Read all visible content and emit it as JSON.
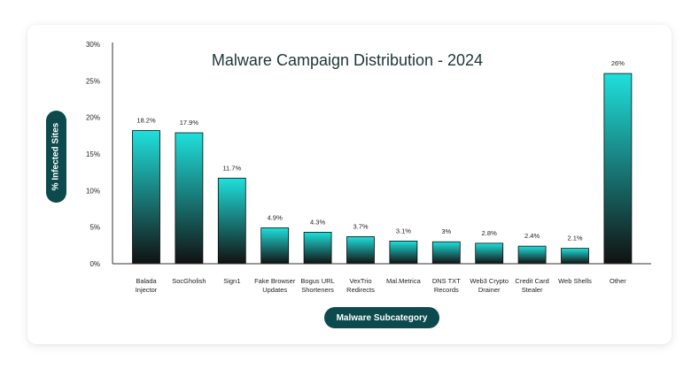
{
  "chart_data": {
    "type": "bar",
    "title": "Malware Campaign Distribution - 2024",
    "xlabel": "Malware Subcategory",
    "ylabel": "% Infected Sites",
    "ylim": [
      0,
      30
    ],
    "yticks": [
      "0%",
      "5%",
      "10%",
      "15%",
      "20%",
      "25%",
      "30%"
    ],
    "categories": [
      [
        "Balada",
        "Injector"
      ],
      [
        "SocGholish"
      ],
      [
        "Sign1"
      ],
      [
        "Fake Browser",
        "Updates"
      ],
      [
        "Bogus URL",
        "Shorteners"
      ],
      [
        "VexTrio",
        "Redirects"
      ],
      [
        "Mal.Metrica"
      ],
      [
        "DNS TXT",
        "Records"
      ],
      [
        "Web3 Crypto",
        "Drainer"
      ],
      [
        "Credit Card",
        "Stealer"
      ],
      [
        "Web Shells"
      ],
      [
        "Other"
      ]
    ],
    "values": [
      18.2,
      17.9,
      11.7,
      4.9,
      4.3,
      3.7,
      3.1,
      3,
      2.8,
      2.4,
      2.1,
      26
    ],
    "value_labels": [
      "18.2%",
      "17.9%",
      "11.7%",
      "4.9%",
      "4.3%",
      "3.7%",
      "3.1%",
      "3%",
      "2.8%",
      "2.4%",
      "2.1%",
      "26%"
    ],
    "grid": false,
    "legend": "none"
  },
  "colors": {
    "bar_top": "#1fe0dc",
    "bar_bottom": "#111111",
    "pill": "#0c4a4d",
    "axis": "#333333",
    "title": "#1f3538"
  }
}
